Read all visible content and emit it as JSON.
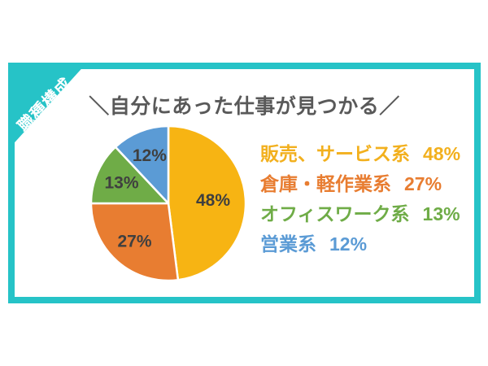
{
  "ribbon": {
    "label": "職種構成"
  },
  "title": "＼自分にあった仕事が見つかる／",
  "chart_data": {
    "type": "pie",
    "title": "＼自分にあった仕事が見つかる／",
    "categories": [
      "販売、サービス系",
      "倉庫・軽作業系",
      "オフィスワーク系",
      "営業系"
    ],
    "values": [
      48,
      27,
      13,
      12
    ],
    "unit": "%",
    "slice_labels": [
      "48%",
      "27%",
      "13%",
      "12%"
    ],
    "colors": [
      "#F7B413",
      "#E87D31",
      "#6FAC47",
      "#5B9BD5"
    ],
    "start_angle_deg": 0,
    "direction": "clockwise",
    "legend_position": "right",
    "slice_label_color": "#3F3F3F",
    "slice_border_color": "#FFFFFF"
  },
  "legend": {
    "items": [
      {
        "label": "販売、サービス系",
        "value": "48%",
        "color": "#F2B01E"
      },
      {
        "label": "倉庫・軽作業系",
        "value": "27%",
        "color": "#E87D31"
      },
      {
        "label": "オフィスワーク系",
        "value": "13%",
        "color": "#6FAC47"
      },
      {
        "label": "営業系",
        "value": "12%",
        "color": "#5B9BD5"
      }
    ]
  },
  "colors": {
    "frame_teal": "#26C3C7",
    "title_gray": "#595959",
    "slice_label_gray": "#3F3F3F"
  }
}
